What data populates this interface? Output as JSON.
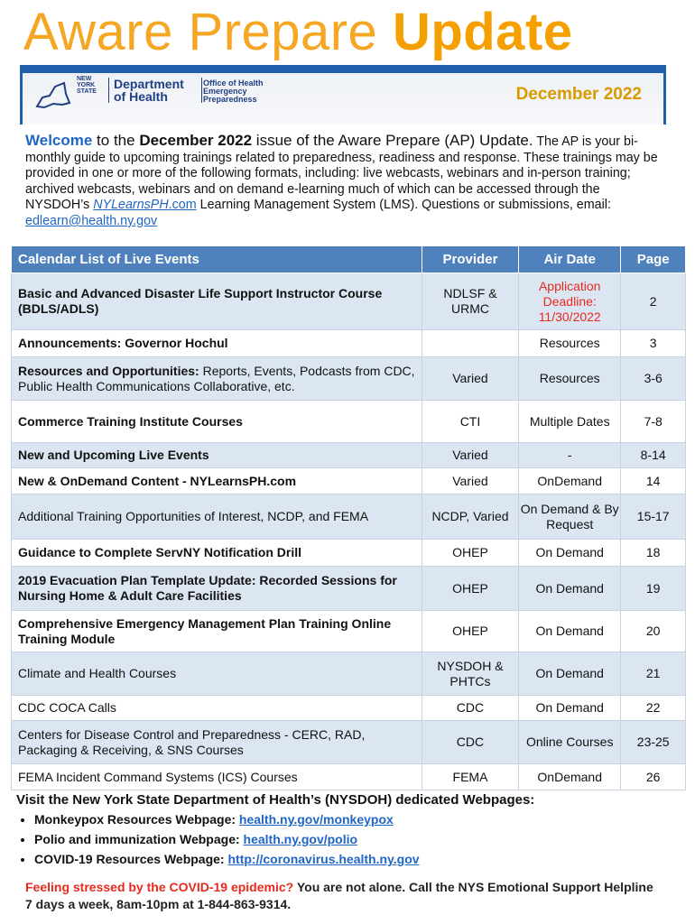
{
  "header": {
    "title_light": "Aware Prepare",
    "title_bold": "Update",
    "logo_state": [
      "NEW",
      "YORK",
      "STATE"
    ],
    "logo_department": "Department of Health",
    "logo_office": "Office of Health Emergency Preparedness",
    "date": "December 2022"
  },
  "intro": {
    "welcome": "Welcome",
    "to_the": " to the ",
    "issue_date": "December 2022",
    "issue_text": " issue of the Aware Prepare (AP) Update.",
    "body": " The AP is your bi-monthly guide to upcoming trainings related to preparedness, readiness and response. These trainings may be provided in one or more of the following formats, including: live webcasts, webinars and in-person training; archived webcasts, webinars and on demand e-learning much of which can be accessed through  the NYSDOH’s ",
    "link_italic": "NYLearnsPH",
    "link_tail": ".com",
    "body_end": " Learning Management System (LMS). Questions or submissions, email: ",
    "email": "edlearn@health.ny.gov"
  },
  "table": {
    "columns": [
      "Calendar List of Live Events",
      "Provider",
      "Air Date",
      "Page"
    ],
    "rows": [
      {
        "title": "Basic and Advanced Disaster Life Support Instructor Course (BDLS/ADLS)",
        "style": "bold",
        "provider": "NDLSF & URMC",
        "air_date": "Application Deadline: 11/30/2022",
        "air_date_color": "#e8291c",
        "page": "2"
      },
      {
        "title": "Announcements: Governor Hochul",
        "style": "bold",
        "provider": null,
        "air_date": "Resources",
        "page": "3"
      },
      {
        "title": "Resources and Opportunities:",
        "detail": " Reports, Events,  Podcasts from CDC, Public Health Communications Collaborative, etc.",
        "style": "bold",
        "provider": "Varied",
        "air_date": "Resources",
        "page": "3-6"
      },
      {
        "title": "Commerce Training Institute Courses",
        "style": "bold",
        "provider": "CTI",
        "air_date": "Multiple Dates",
        "page": "7-8"
      },
      {
        "title": "New and Upcoming Live Events",
        "style": "bold",
        "provider": "Varied",
        "air_date": "-",
        "page": "8-14"
      },
      {
        "title": "New & OnDemand Content - NYLearnsPH.com",
        "style": "bold",
        "provider": "Varied",
        "air_date": "OnDemand",
        "page": "14"
      },
      {
        "title": "Additional Training Opportunities of Interest,  NCDP, and FEMA",
        "style": "normal",
        "provider": "NCDP, Varied",
        "air_date": "On Demand & By Request",
        "page": "15-17"
      },
      {
        "title": "Guidance to Complete ServNY Notification  Drill",
        "style": "bold",
        "provider": "OHEP",
        "air_date": "On Demand",
        "page": "18"
      },
      {
        "title": "2019 Evacuation Plan Template Update: Recorded Sessions for Nursing Home & Adult Care Facilities",
        "style": "bold",
        "provider": "OHEP",
        "air_date": "On Demand",
        "page": "19"
      },
      {
        "title": "Comprehensive Emergency Management Plan Training Online Training Module",
        "style": "bold",
        "provider": "OHEP",
        "air_date": "On Demand",
        "page": "20"
      },
      {
        "title": "Climate and Health Courses",
        "style": "normal",
        "provider": "NYSDOH & PHTCs",
        "air_date": "On Demand",
        "page": "21"
      },
      {
        "title": "CDC COCA Calls",
        "style": "normal",
        "provider": "CDC",
        "air_date": "On Demand",
        "page": "22"
      },
      {
        "title": "Centers for Disease Control and Preparedness - CERC, RAD, Packaging & Receiving, & SNS Courses",
        "style": "normal",
        "provider": "CDC",
        "air_date": "Online Courses",
        "page": "23-25"
      },
      {
        "title": "FEMA Incident Command Systems (ICS) Courses",
        "style": "normal",
        "provider": "FEMA",
        "air_date": "OnDemand",
        "page": "26"
      }
    ]
  },
  "webpages": {
    "heading": "Visit the New York State Department of Health’s (NYSDOH) dedicated Webpages:",
    "items": [
      {
        "label": "Monkeypox Resources Webpage: ",
        "link": "health.ny.gov/monkeypox"
      },
      {
        "label": "Polio and immunization Webpage: ",
        "link": "health.ny.gov/polio"
      },
      {
        "label": "COVID-19 Resources Webpage: ",
        "link": "http://coronavirus.health.ny.gov"
      }
    ]
  },
  "helpline": {
    "question": "Feeling stressed by the COVID-19 epidemic?",
    "message": " You are not alone. Call the NYS Emotional Support Helpline 7 days a week, 8am-10pm at 1-844-863-9314."
  }
}
